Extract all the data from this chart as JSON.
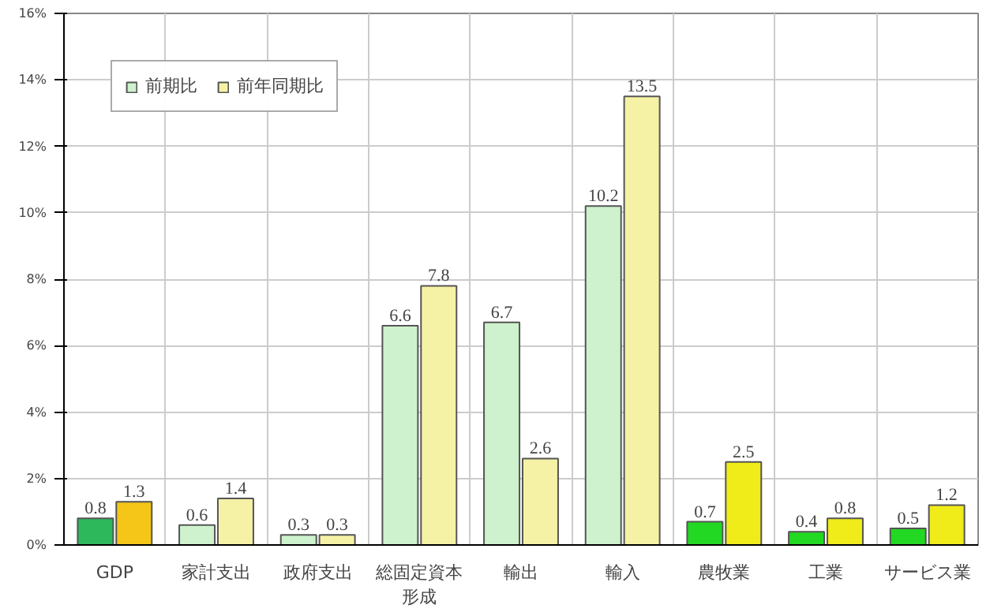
{
  "chart_data": {
    "type": "bar",
    "categories": [
      "GDP",
      "家計支出",
      "政府支出",
      "総固定資本形成",
      "輸出",
      "輸入",
      "農牧業",
      "工業",
      "サービス業"
    ],
    "series": [
      {
        "name": "前期比",
        "color": "#cdf2cd",
        "colors": [
          "#2eb85c",
          "#cdf2cd",
          "#cdf2cd",
          "#cdf2cd",
          "#cdf2cd",
          "#cdf2cd",
          "#22d822",
          "#22d822",
          "#22d822"
        ],
        "values": [
          0.8,
          0.6,
          0.3,
          6.6,
          6.7,
          10.2,
          0.7,
          0.4,
          0.5
        ]
      },
      {
        "name": "前年同期比",
        "color": "#f5f2a6",
        "colors": [
          "#f5c518",
          "#f5f2a6",
          "#f5f2a6",
          "#f5f2a6",
          "#f5f2a6",
          "#f5f2a6",
          "#f0ec1a",
          "#f0ec1a",
          "#f0ec1a"
        ],
        "values": [
          1.3,
          1.4,
          0.3,
          7.8,
          2.6,
          13.5,
          2.5,
          0.8,
          1.2
        ]
      }
    ],
    "ylim": [
      0,
      16
    ],
    "yticks": [
      {
        "value": 0,
        "label": "0%"
      },
      {
        "value": 2,
        "label": "2%"
      },
      {
        "value": 4,
        "label": "4%"
      },
      {
        "value": 6,
        "label": "6%"
      },
      {
        "value": 8,
        "label": "8%"
      },
      {
        "value": 10,
        "label": "10%"
      },
      {
        "value": 12,
        "label": "12%"
      },
      {
        "value": 14,
        "label": "14%"
      },
      {
        "value": 16,
        "label": "16%"
      }
    ],
    "grid": true,
    "legend": "top left",
    "data_labels": true
  }
}
